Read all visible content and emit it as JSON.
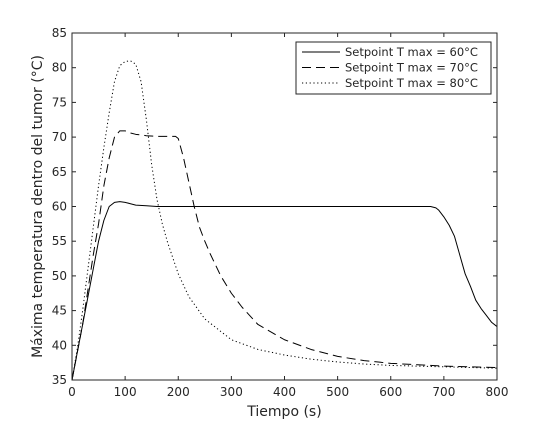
{
  "chart_data": {
    "type": "line",
    "title": "",
    "xlabel": "Tiempo (s)",
    "ylabel": "Máxima temperatura dentro del tumor (°C)",
    "xlim": [
      0,
      800
    ],
    "ylim": [
      35,
      85
    ],
    "xticks": [
      0,
      100,
      200,
      300,
      400,
      500,
      600,
      700,
      800
    ],
    "yticks": [
      35,
      40,
      45,
      50,
      55,
      60,
      65,
      70,
      75,
      80,
      85
    ],
    "grid": false,
    "legend_position": "top-right",
    "series": [
      {
        "name": "Setpoint T max = 60°C",
        "line_style": "solid",
        "color": "#000000",
        "x": [
          0,
          10,
          20,
          30,
          40,
          50,
          60,
          70,
          80,
          90,
          100,
          110,
          120,
          140,
          160,
          200,
          300,
          400,
          500,
          600,
          660,
          675,
          685,
          690,
          700,
          710,
          720,
          730,
          740,
          750,
          760,
          770,
          780,
          790,
          800
        ],
        "y": [
          35,
          39,
          43,
          47,
          51,
          55,
          58,
          60,
          60.6,
          60.7,
          60.6,
          60.4,
          60.2,
          60.1,
          60,
          60,
          60,
          60,
          60,
          60,
          60,
          60,
          59.8,
          59.5,
          58.5,
          57.3,
          55.7,
          53,
          50.3,
          48.5,
          46.5,
          45.3,
          44.3,
          43.3,
          42.7
        ]
      },
      {
        "name": "Setpoint T max = 70°C",
        "line_style": "dashed",
        "color": "#000000",
        "x": [
          0,
          10,
          20,
          30,
          40,
          50,
          60,
          70,
          80,
          90,
          100,
          110,
          120,
          140,
          160,
          180,
          195,
          200,
          210,
          220,
          230,
          240,
          250,
          260,
          280,
          300,
          320,
          350,
          400,
          450,
          500,
          550,
          600,
          650,
          700,
          750,
          800
        ],
        "y": [
          35,
          39,
          43,
          48,
          53,
          57.5,
          63,
          67,
          70,
          70.9,
          70.9,
          70.6,
          70.4,
          70.2,
          70.1,
          70.1,
          70.1,
          69.8,
          67,
          63.5,
          60,
          57,
          55,
          53.2,
          50,
          47.5,
          45.5,
          43,
          40.8,
          39.4,
          38.4,
          37.8,
          37.4,
          37.2,
          37,
          36.9,
          36.8
        ]
      },
      {
        "name": "Setpoint T max = 80°C",
        "line_style": "dotted",
        "color": "#000000",
        "x": [
          0,
          10,
          20,
          30,
          40,
          50,
          60,
          70,
          80,
          90,
          100,
          110,
          120,
          130,
          140,
          150,
          160,
          170,
          180,
          200,
          220,
          250,
          300,
          350,
          400,
          450,
          500,
          550,
          600,
          650,
          700,
          750,
          800
        ],
        "y": [
          35,
          39.5,
          45,
          51,
          57,
          63,
          68.5,
          73.5,
          78,
          80.3,
          80.9,
          81,
          80.5,
          78,
          72.5,
          66,
          61,
          57.5,
          54.8,
          50.3,
          47,
          43.8,
          40.8,
          39.4,
          38.6,
          38,
          37.6,
          37.3,
          37.1,
          37,
          36.9,
          36.8,
          36.7
        ]
      }
    ]
  }
}
